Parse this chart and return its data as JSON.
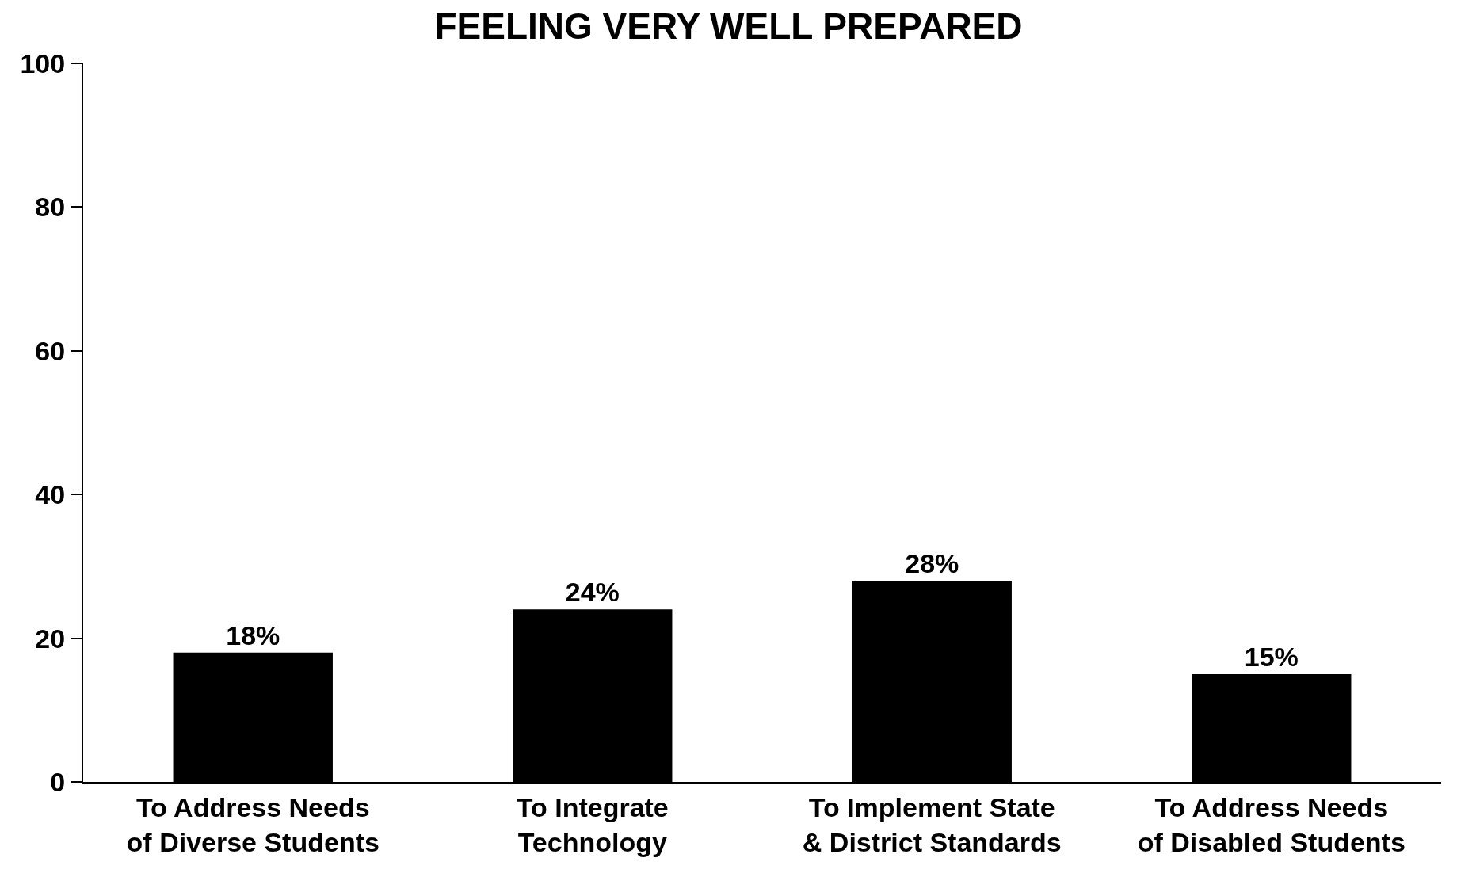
{
  "chart_data": {
    "type": "bar",
    "title": "FEELING VERY WELL PREPARED",
    "categories": [
      "To Address Needs\nof Diverse Students",
      "To Integrate\nTechnology",
      "To Implement State\n& District Standards",
      "To Address Needs\nof Disabled Students"
    ],
    "values": [
      18,
      24,
      28,
      15
    ],
    "value_labels": [
      "18%",
      "24%",
      "28%",
      "15%"
    ],
    "color": "#000000",
    "ylim": [
      0,
      100
    ],
    "yticks": [
      0,
      20,
      40,
      60,
      80,
      100
    ]
  }
}
